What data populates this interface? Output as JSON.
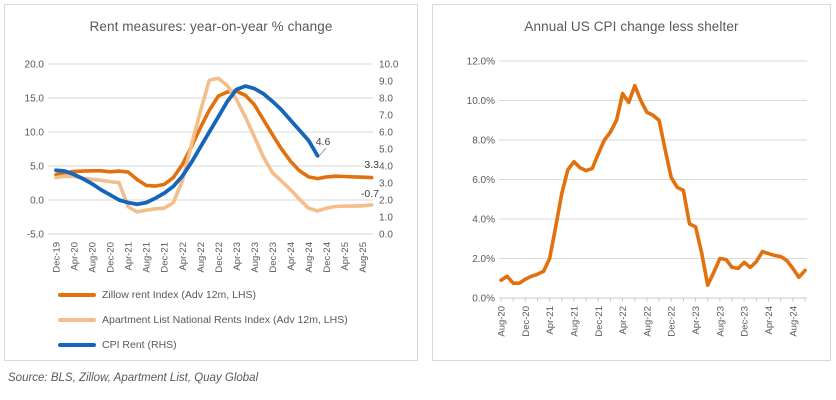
{
  "source_text": "Source: BLS, Zillow, Apartment List, Quay Global",
  "colors": {
    "dark_orange": "#E2710D",
    "light_orange": "#F4BE8C",
    "blue": "#1565BD",
    "gridline": "#D9D9D9",
    "axis_text": "#595959",
    "title_text": "#595959",
    "data_label": "#3F3F3F",
    "axis_line": "#C8C8C8",
    "leader_line": "#A6A6A6"
  },
  "chart_data": [
    {
      "type": "line",
      "title": "Rent measures: year-on-year % change",
      "x_start": "Dec-19",
      "x_tick_labels": [
        "Dec-19",
        "Apr-20",
        "Aug-20",
        "Dec-20",
        "Apr-21",
        "Aug-21",
        "Dec-21",
        "Apr-22",
        "Aug-22",
        "Dec-22",
        "Apr-23",
        "Aug-23",
        "Dec-23",
        "Apr-24",
        "Aug-24",
        "Dec-24",
        "Apr-25",
        "Aug-25"
      ],
      "left_axis": {
        "min": -5,
        "max": 20,
        "tick_labels": [
          "20.0",
          "15.0",
          "10.0",
          "5.0",
          "0.0",
          "-5.0"
        ],
        "tick_values": [
          20,
          15,
          10,
          5,
          0,
          -5
        ]
      },
      "right_axis": {
        "min": 0,
        "max": 10,
        "tick_labels": [
          "10.0",
          "9.0",
          "8.0",
          "7.0",
          "6.0",
          "5.0",
          "4.0",
          "3.0",
          "2.0",
          "1.0",
          "0.0"
        ],
        "tick_values": [
          10,
          9,
          8,
          7,
          6,
          5,
          4,
          3,
          2,
          1,
          0
        ]
      },
      "grid": true,
      "legend_position": "bottom-left",
      "sample_step_months": 2,
      "series": [
        {
          "name": "Zillow rent Index (Adv 12m, LHS)",
          "axis": "left",
          "color": "#E2710D",
          "end_label": "3.3",
          "values": [
            3.7,
            4.0,
            4.2,
            4.25,
            4.3,
            4.3,
            4.15,
            4.25,
            4.1,
            3.0,
            2.15,
            2.05,
            2.3,
            3.3,
            5.2,
            7.8,
            10.6,
            13.2,
            15.3,
            15.9,
            16.0,
            15.4,
            14.0,
            11.8,
            9.6,
            7.5,
            5.7,
            4.3,
            3.4,
            3.15,
            3.4,
            3.5,
            3.45,
            3.4,
            3.35,
            3.3
          ]
        },
        {
          "name": "Apartment List National Rents Index (Adv 12m, LHS)",
          "axis": "left",
          "color": "#F4BE8C",
          "end_label": "-0.7",
          "values": [
            3.3,
            3.5,
            3.45,
            3.2,
            3.05,
            2.9,
            2.7,
            2.55,
            -1.0,
            -1.75,
            -1.5,
            -1.3,
            -1.2,
            -0.4,
            2.8,
            8.0,
            13.0,
            17.6,
            17.9,
            16.8,
            14.8,
            12.2,
            9.3,
            6.3,
            4.0,
            2.8,
            1.5,
            0.1,
            -1.2,
            -1.6,
            -1.2,
            -0.95,
            -0.9,
            -0.9,
            -0.85,
            -0.7
          ]
        },
        {
          "name": "CPI Rent (RHS)",
          "axis": "right",
          "color": "#1565BD",
          "end_label": "4.6",
          "values": [
            3.75,
            3.7,
            3.5,
            3.25,
            2.95,
            2.6,
            2.3,
            2.0,
            1.85,
            1.75,
            1.85,
            2.1,
            2.4,
            2.8,
            3.4,
            4.2,
            5.1,
            6.0,
            6.9,
            7.8,
            8.5,
            8.7,
            8.55,
            8.25,
            7.8,
            7.3,
            6.7,
            6.1,
            5.5,
            4.6
          ]
        }
      ]
    },
    {
      "type": "line",
      "title": "Annual US CPI change less shelter",
      "x_start": "Aug-20",
      "x_tick_labels": [
        "Aug-20",
        "Dec-20",
        "Apr-21",
        "Aug-21",
        "Dec-21",
        "Apr-22",
        "Aug-22",
        "Dec-22",
        "Apr-23",
        "Aug-23",
        "Dec-23",
        "Apr-24",
        "Aug-24"
      ],
      "y_axis": {
        "min": 0,
        "max": 12,
        "tick_labels": [
          "12.0%",
          "10.0%",
          "8.0%",
          "6.0%",
          "4.0%",
          "2.0%",
          "0.0%"
        ],
        "tick_values": [
          12,
          10,
          8,
          6,
          4,
          2,
          0
        ]
      },
      "grid": true,
      "sample_step_months": 1,
      "series": [
        {
          "name": "Annual US CPI change less shelter",
          "axis": "left",
          "color": "#E2710D",
          "values": [
            0.9,
            1.1,
            0.75,
            0.75,
            0.95,
            1.1,
            1.2,
            1.35,
            2.0,
            3.6,
            5.3,
            6.5,
            6.9,
            6.6,
            6.45,
            6.55,
            7.3,
            8.0,
            8.4,
            9.0,
            10.35,
            9.9,
            10.75,
            10.0,
            9.4,
            9.25,
            9.0,
            7.5,
            6.1,
            5.6,
            5.45,
            3.75,
            3.6,
            2.3,
            0.65,
            1.3,
            2.0,
            1.95,
            1.55,
            1.5,
            1.8,
            1.55,
            1.85,
            2.35,
            2.25,
            2.15,
            2.1,
            1.9,
            1.5,
            1.05,
            1.4
          ]
        }
      ]
    }
  ]
}
